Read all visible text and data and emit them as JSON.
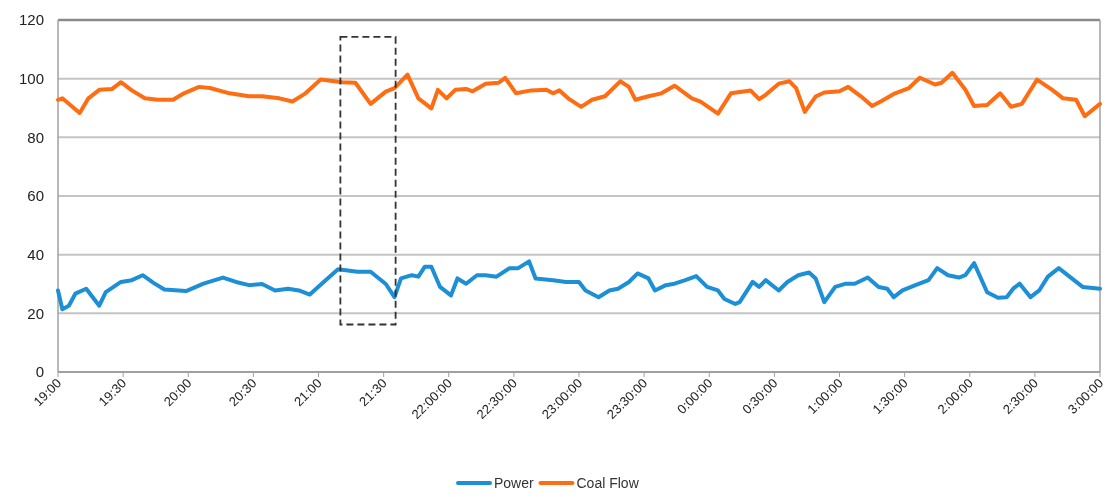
{
  "chart_data": {
    "type": "line",
    "xlim": [
      "2000-01-01T19:00",
      "2000-01-02T03:00"
    ],
    "ylim": [
      0,
      120
    ],
    "yticks": [
      0,
      20,
      40,
      60,
      80,
      100,
      120
    ],
    "xticks": [
      {
        "value": "2000-01-01T19:00",
        "label": "19:00"
      },
      {
        "value": "2000-01-01T19:30",
        "label": "19:30"
      },
      {
        "value": "2000-01-01T20:00",
        "label": "20:00"
      },
      {
        "value": "2000-01-01T20:30",
        "label": "20:30"
      },
      {
        "value": "2000-01-01T21:00",
        "label": "21:00"
      },
      {
        "value": "2000-01-01T21:30",
        "label": "21:30"
      },
      {
        "value": "2000-01-01T22:00",
        "label": "22:00:00"
      },
      {
        "value": "2000-01-01T22:30",
        "label": "22:30:00"
      },
      {
        "value": "2000-01-01T23:00",
        "label": "23:00:00"
      },
      {
        "value": "2000-01-01T23:30",
        "label": "23:30:00"
      },
      {
        "value": "2000-01-02T00:00",
        "label": "0:00:00"
      },
      {
        "value": "2000-01-02T00:30",
        "label": "0:30:00"
      },
      {
        "value": "2000-01-02T01:00",
        "label": "1:00:00"
      },
      {
        "value": "2000-01-02T01:30",
        "label": "1:30:00"
      },
      {
        "value": "2000-01-02T02:00",
        "label": "2:00:00"
      },
      {
        "value": "2000-01-02T02:30",
        "label": "2:30:00"
      },
      {
        "value": "2000-01-02T03:00",
        "label": "3:00:00"
      }
    ],
    "grid": "y",
    "legend": "bottom",
    "line_style": "solid",
    "marker": "none",
    "series": [
      {
        "name": "Power",
        "color": "#1c8fd6",
        "x": [
          "2000-01-01T19:00",
          "2000-01-01T19:02",
          "2000-01-01T19:05",
          "2000-01-01T19:08",
          "2000-01-01T19:13",
          "2000-01-01T19:16",
          "2000-01-01T19:19",
          "2000-01-01T19:22",
          "2000-01-01T19:29",
          "2000-01-01T19:34",
          "2000-01-01T19:39",
          "2000-01-01T19:44",
          "2000-01-01T19:49",
          "2000-01-01T19:59",
          "2000-01-01T20:07",
          "2000-01-01T20:16",
          "2000-01-01T20:22",
          "2000-01-01T20:28",
          "2000-01-01T20:34",
          "2000-01-01T20:40",
          "2000-01-01T20:46",
          "2000-01-01T20:51",
          "2000-01-01T20:56",
          "2000-01-01T21:02",
          "2000-01-01T21:09",
          "2000-01-01T21:18",
          "2000-01-01T21:24",
          "2000-01-01T21:31",
          "2000-01-01T21:35",
          "2000-01-01T21:38",
          "2000-01-01T21:43",
          "2000-01-01T21:46",
          "2000-01-01T21:49",
          "2000-01-01T21:52",
          "2000-01-01T21:56",
          "2000-01-01T22:01",
          "2000-01-01T22:04",
          "2000-01-01T22:08",
          "2000-01-01T22:13",
          "2000-01-01T22:17",
          "2000-01-01T22:22",
          "2000-01-01T22:28",
          "2000-01-01T22:32",
          "2000-01-01T22:37",
          "2000-01-01T22:40",
          "2000-01-01T22:48",
          "2000-01-01T22:54",
          "2000-01-01T23:00",
          "2000-01-01T23:03",
          "2000-01-01T23:09",
          "2000-01-01T23:14",
          "2000-01-01T23:18",
          "2000-01-01T23:23",
          "2000-01-01T23:27",
          "2000-01-01T23:32",
          "2000-01-01T23:35",
          "2000-01-01T23:40",
          "2000-01-01T23:44",
          "2000-01-01T23:49",
          "2000-01-01T23:54",
          "2000-01-01T23:59",
          "2000-01-02T00:04",
          "2000-01-02T00:07",
          "2000-01-02T00:12",
          "2000-01-02T00:14",
          "2000-01-02T00:20",
          "2000-01-02T00:23",
          "2000-01-02T00:26",
          "2000-01-02T00:32",
          "2000-01-02T00:36",
          "2000-01-02T00:41",
          "2000-01-02T00:46",
          "2000-01-02T00:49",
          "2000-01-02T00:53",
          "2000-01-02T00:58",
          "2000-01-02T01:03",
          "2000-01-02T01:07",
          "2000-01-02T01:13",
          "2000-01-02T01:18",
          "2000-01-02T01:22",
          "2000-01-02T01:25",
          "2000-01-02T01:29",
          "2000-01-02T01:35",
          "2000-01-02T01:41",
          "2000-01-02T01:45",
          "2000-01-02T01:50",
          "2000-01-02T01:55",
          "2000-01-02T01:58",
          "2000-01-02T02:02",
          "2000-01-02T02:08",
          "2000-01-02T02:13",
          "2000-01-02T02:17",
          "2000-01-02T02:20",
          "2000-01-02T02:23",
          "2000-01-02T02:28",
          "2000-01-02T02:32",
          "2000-01-02T02:36",
          "2000-01-02T02:41",
          "2000-01-02T02:47",
          "2000-01-02T02:52",
          "2000-01-02T03:00"
        ],
        "values": [
          27.8,
          21.4,
          22.6,
          26.7,
          28.4,
          25.5,
          22.6,
          27.2,
          30.7,
          31.3,
          33,
          30.4,
          28.1,
          27.6,
          30.1,
          32.2,
          30.7,
          29.6,
          30,
          27.8,
          28.4,
          27.8,
          26.4,
          30.4,
          35,
          34.2,
          34.2,
          30,
          25.5,
          31.9,
          33,
          32.5,
          35.9,
          35.9,
          29,
          26.1,
          31.9,
          30.1,
          33,
          33,
          32.5,
          35.4,
          35.4,
          37.7,
          31.9,
          31.3,
          30.7,
          30.7,
          27.8,
          25.5,
          27.8,
          28.4,
          30.7,
          33.6,
          31.9,
          27.8,
          29.6,
          30.1,
          31.3,
          32.7,
          29,
          27.8,
          24.9,
          23.2,
          23.8,
          30.7,
          29,
          31.3,
          27.8,
          30.7,
          33,
          33.9,
          31.9,
          23.8,
          29,
          30.1,
          30.1,
          32.2,
          29,
          28.4,
          25.5,
          27.8,
          29.6,
          31.3,
          35.4,
          33,
          32.2,
          33,
          37.1,
          27.2,
          25.3,
          25.5,
          28.4,
          30.1,
          25.5,
          27.8,
          32.5,
          35.4,
          31.9,
          29,
          28.4
        ]
      },
      {
        "name": "Coal Flow",
        "color": "#ff6d12",
        "x": [
          "2000-01-01T19:00",
          "2000-01-01T19:02",
          "2000-01-01T19:10",
          "2000-01-01T19:14",
          "2000-01-01T19:19",
          "2000-01-01T19:25",
          "2000-01-01T19:29",
          "2000-01-01T19:34",
          "2000-01-01T19:40",
          "2000-01-01T19:46",
          "2000-01-01T19:53",
          "2000-01-01T19:58",
          "2000-01-01T20:05",
          "2000-01-01T20:10",
          "2000-01-01T20:19",
          "2000-01-01T20:28",
          "2000-01-01T20:34",
          "2000-01-01T20:42",
          "2000-01-01T20:48",
          "2000-01-01T20:54",
          "2000-01-01T21:01",
          "2000-01-01T21:11",
          "2000-01-01T21:17",
          "2000-01-01T21:24",
          "2000-01-01T21:31",
          "2000-01-01T21:35",
          "2000-01-01T21:41",
          "2000-01-01T21:46",
          "2000-01-01T21:52",
          "2000-01-01T21:55",
          "2000-01-01T21:59",
          "2000-01-01T22:03",
          "2000-01-01T22:08",
          "2000-01-01T22:11",
          "2000-01-01T22:17",
          "2000-01-01T22:23",
          "2000-01-01T22:26",
          "2000-01-01T22:31",
          "2000-01-01T22:38",
          "2000-01-01T22:45",
          "2000-01-01T22:48",
          "2000-01-01T22:51",
          "2000-01-01T22:55",
          "2000-01-01T23:01",
          "2000-01-01T23:06",
          "2000-01-01T23:12",
          "2000-01-01T23:19",
          "2000-01-01T23:23",
          "2000-01-01T23:26",
          "2000-01-01T23:32",
          "2000-01-01T23:38",
          "2000-01-01T23:44",
          "2000-01-01T23:52",
          "2000-01-01T23:56",
          "2000-01-02T00:04",
          "2000-01-02T00:10",
          "2000-01-02T00:19",
          "2000-01-02T00:23",
          "2000-01-02T00:26",
          "2000-01-02T00:32",
          "2000-01-02T00:37",
          "2000-01-02T00:40",
          "2000-01-02T00:44",
          "2000-01-02T00:49",
          "2000-01-02T00:53",
          "2000-01-02T01:00",
          "2000-01-02T01:04",
          "2000-01-02T01:10",
          "2000-01-02T01:15",
          "2000-01-02T01:19",
          "2000-01-02T01:25",
          "2000-01-02T01:32",
          "2000-01-02T01:37",
          "2000-01-02T01:44",
          "2000-01-02T01:47",
          "2000-01-02T01:52",
          "2000-01-02T01:58",
          "2000-01-02T02:02",
          "2000-01-02T02:08",
          "2000-01-02T02:14",
          "2000-01-02T02:19",
          "2000-01-02T02:24",
          "2000-01-02T02:31",
          "2000-01-02T02:38",
          "2000-01-02T02:43",
          "2000-01-02T02:49",
          "2000-01-02T02:53",
          "2000-01-02T03:00"
        ],
        "values": [
          92.8,
          93.3,
          88.3,
          93.3,
          96.2,
          96.5,
          98.8,
          96,
          93.3,
          92.8,
          92.8,
          95,
          97.2,
          96.8,
          95,
          94,
          94,
          93.3,
          92.2,
          95,
          99.7,
          98.8,
          98.6,
          91.4,
          95.6,
          96.8,
          101.4,
          93.3,
          89.9,
          96.2,
          93.3,
          96.2,
          96.5,
          95.7,
          98.3,
          98.6,
          100.3,
          95,
          96,
          96.2,
          95,
          96,
          93.3,
          90.4,
          92.8,
          94,
          99.1,
          97.2,
          92.8,
          94,
          95,
          97.6,
          93.3,
          92.2,
          88.1,
          95,
          96,
          93,
          94.5,
          98.3,
          99.1,
          96.8,
          88.7,
          93.9,
          95.3,
          95.7,
          97.2,
          93.9,
          90.7,
          92.2,
          94.8,
          96.8,
          100.3,
          98,
          98.6,
          102,
          96.2,
          90.7,
          91,
          95,
          90.4,
          91.4,
          99.7,
          96.2,
          93.3,
          92.8,
          87.2,
          91.4
        ]
      }
    ]
  }
}
